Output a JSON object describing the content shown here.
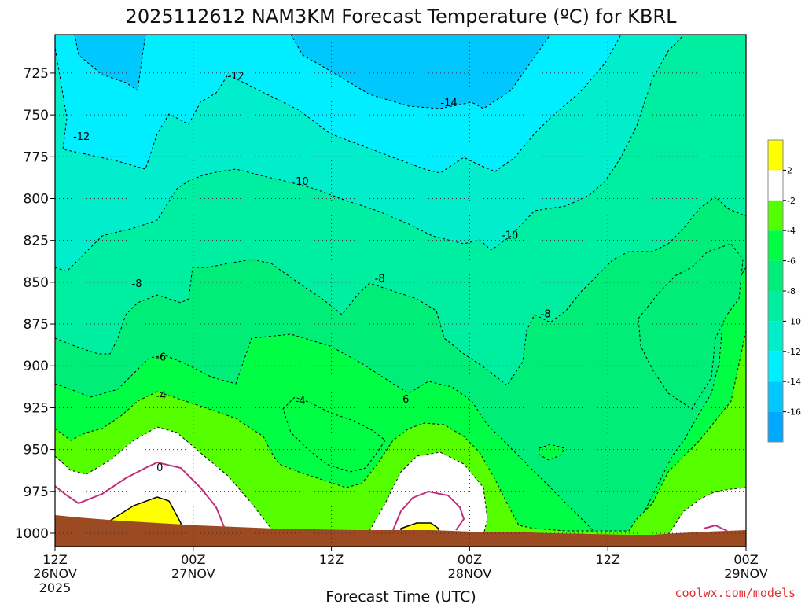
{
  "title": "2025112612 NAM3KM Forecast Temperature (ºC) for KBRL",
  "xlabel": "Forecast Time (UTC)",
  "credit": "coolwx.com/models",
  "colors": {
    "ground": "#9c4a22",
    "frame": "#000000",
    "freezing_line": "#c0307a"
  },
  "chart_data": {
    "type": "heatmap",
    "title": "2025112612 NAM3KM Forecast Temperature (ºC) for KBRL",
    "xlabel": "Forecast Time (UTC)",
    "ylabel": "",
    "x_ticks": [
      {
        "label": "12Z",
        "line2": "26NOV",
        "line3": "2025"
      },
      {
        "label": "00Z",
        "line2": "27NOV",
        "line3": ""
      },
      {
        "label": "12Z",
        "line2": "",
        "line3": ""
      },
      {
        "label": "00Z",
        "line2": "28NOV",
        "line3": ""
      },
      {
        "label": "12Z",
        "line2": "",
        "line3": ""
      },
      {
        "label": "00Z",
        "line2": "29NOV",
        "line3": ""
      }
    ],
    "y_ticks": [
      725,
      750,
      775,
      800,
      825,
      850,
      875,
      900,
      925,
      950,
      975,
      1000
    ],
    "ylim": [
      1008,
      702
    ],
    "xlim_hours": [
      0,
      60
    ],
    "contour_interval": 2,
    "contour_labels": [
      {
        "text": "-12",
        "t": 15.7,
        "p": 727
      },
      {
        "text": "-12",
        "t": 2.3,
        "p": 763
      },
      {
        "text": "-14",
        "t": 34.2,
        "p": 743
      },
      {
        "text": "-10",
        "t": 21.3,
        "p": 790
      },
      {
        "text": "-10",
        "t": 39.5,
        "p": 822
      },
      {
        "text": "-8",
        "t": 7.1,
        "p": 851
      },
      {
        "text": "-8",
        "t": 28.2,
        "p": 848
      },
      {
        "text": "-8",
        "t": 42.6,
        "p": 869
      },
      {
        "text": "-6",
        "t": 9.2,
        "p": 895
      },
      {
        "text": "-6",
        "t": 30.3,
        "p": 920
      },
      {
        "text": "-4",
        "t": 9.2,
        "p": 918
      },
      {
        "text": "-4",
        "t": 21.3,
        "p": 921
      },
      {
        "text": "0",
        "t": 9.1,
        "p": 961
      }
    ],
    "colorbar": {
      "labels": [
        "2",
        "-2",
        "-4",
        "-6",
        "-8",
        "-10",
        "-12",
        "-14",
        "-16"
      ],
      "levels": [
        2,
        0,
        -2,
        -4,
        -6,
        -8,
        -10,
        -12,
        -14,
        -16,
        -18
      ],
      "colors": [
        "#ffff00",
        "#ffffff",
        "#55ff00",
        "#00ff44",
        "#00ee77",
        "#00eea0",
        "#00eecc",
        "#00eeff",
        "#00c8ff",
        "#00a8ff"
      ]
    },
    "grid": true,
    "grid_style": "dotted"
  }
}
